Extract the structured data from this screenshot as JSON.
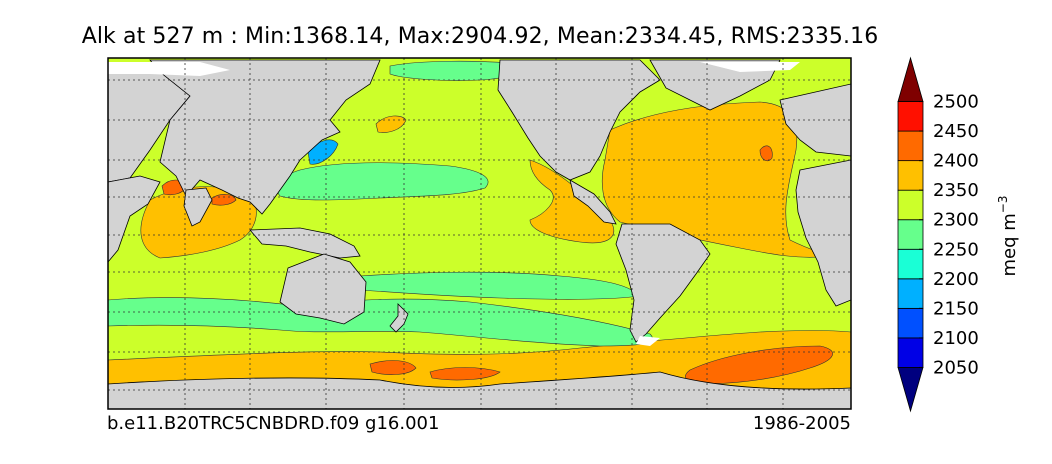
{
  "title": "Alk at 527 m : Min:1368.14, Max:2904.92, Mean:2334.45, RMS:2335.16",
  "footer": {
    "case_name": "b.e11.B20TRC5CNBDRD.f09 g16.001",
    "period": "1986-2005"
  },
  "colorbar": {
    "label": "meq m",
    "label_exponent": "−3",
    "extend": "both",
    "levels": [
      2050,
      2100,
      2150,
      2200,
      2250,
      2300,
      2350,
      2400,
      2450,
      2500
    ],
    "colors": [
      "#00007f",
      "#0000e6",
      "#0050ff",
      "#00b0ff",
      "#1affd6",
      "#66ff8c",
      "#ccff2a",
      "#ffc000",
      "#ff6a00",
      "#ff1000",
      "#7f0000"
    ],
    "tick_labels": [
      "2050",
      "2100",
      "2150",
      "2200",
      "2250",
      "2300",
      "2350",
      "2400",
      "2450",
      "2500"
    ]
  },
  "map": {
    "land_color": "#d3d3d3",
    "missing_color": "#ffffff",
    "gridlines": "dotted",
    "background_field_color": "#ccff2a"
  }
}
